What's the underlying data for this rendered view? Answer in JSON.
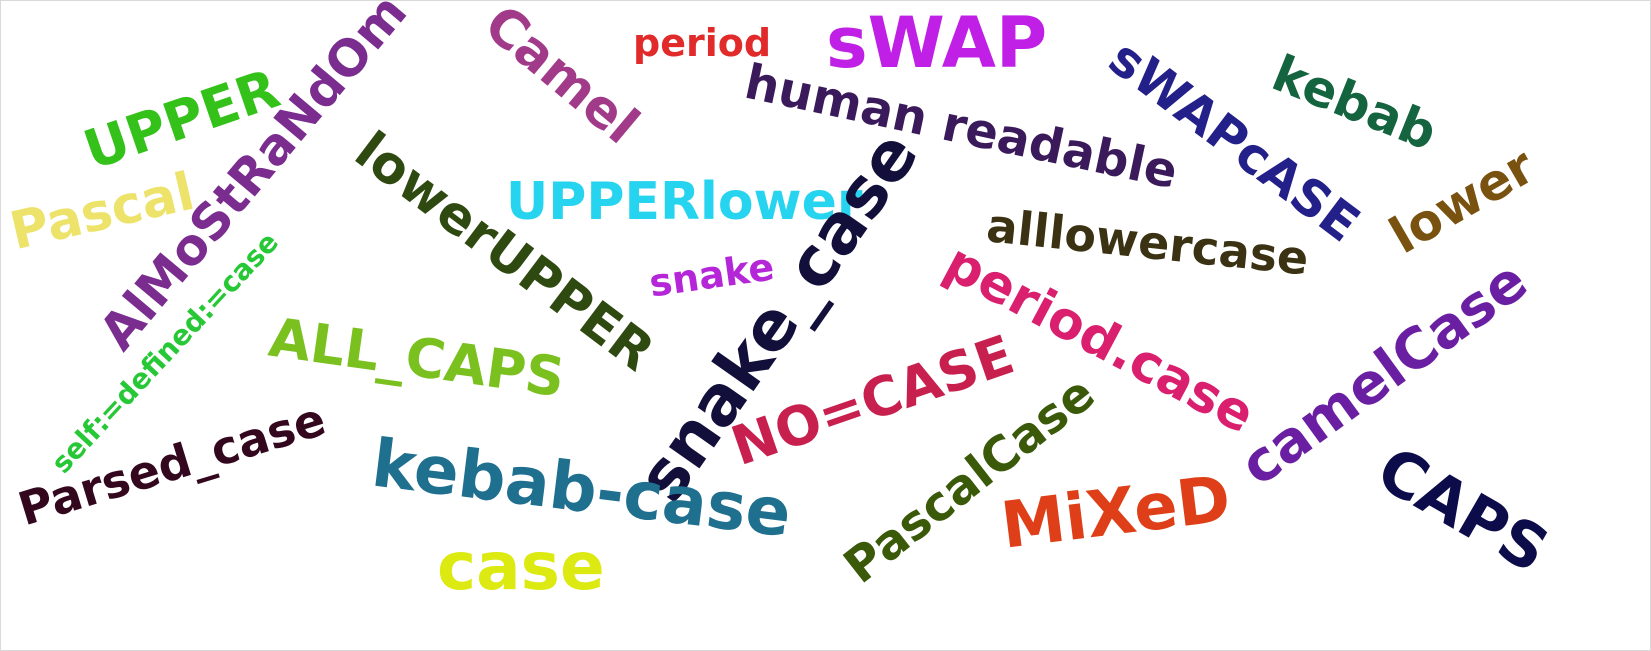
{
  "words": [
    {
      "text": "UPPER",
      "color": "#33c11a"
    },
    {
      "text": "Pascal",
      "color": "#ede36a"
    },
    {
      "text": "AlMoStRaNdOm",
      "color": "#7a2c8f"
    },
    {
      "text": "Camel",
      "color": "#a23a8a"
    },
    {
      "text": "period",
      "color": "#e12a2a"
    },
    {
      "text": "sWAP",
      "color": "#c020e6"
    },
    {
      "text": "sWAPcASE",
      "color": "#23208a"
    },
    {
      "text": "kebab",
      "color": "#14643f"
    },
    {
      "text": "human readable",
      "color": "#3a1a5a"
    },
    {
      "text": "lowerUPPER",
      "color": "#2f4a10"
    },
    {
      "text": "UPPERlower",
      "color": "#27d4ef"
    },
    {
      "text": "snake_case",
      "color": "#120f3a"
    },
    {
      "text": "alllowercase",
      "color": "#3a3212"
    },
    {
      "text": "lower",
      "color": "#7a5210"
    },
    {
      "text": "self:=defined:=case",
      "color": "#27c836"
    },
    {
      "text": "snake",
      "color": "#b426d8"
    },
    {
      "text": "ALL_CAPS",
      "color": "#7ac11f"
    },
    {
      "text": "period.case",
      "color": "#d91f6e"
    },
    {
      "text": "camelCase",
      "color": "#6a1fa3"
    },
    {
      "text": "NO=CASE",
      "color": "#c8204e"
    },
    {
      "text": "Parsed_case",
      "color": "#33081f"
    },
    {
      "text": "kebab-case",
      "color": "#1f6f8f"
    },
    {
      "text": "PascalCase",
      "color": "#3a5a0a"
    },
    {
      "text": "MiXeD",
      "color": "#de3f18"
    },
    {
      "text": "CAPS",
      "color": "#0c0c4a"
    },
    {
      "text": "case",
      "color": "#dcea12"
    }
  ]
}
